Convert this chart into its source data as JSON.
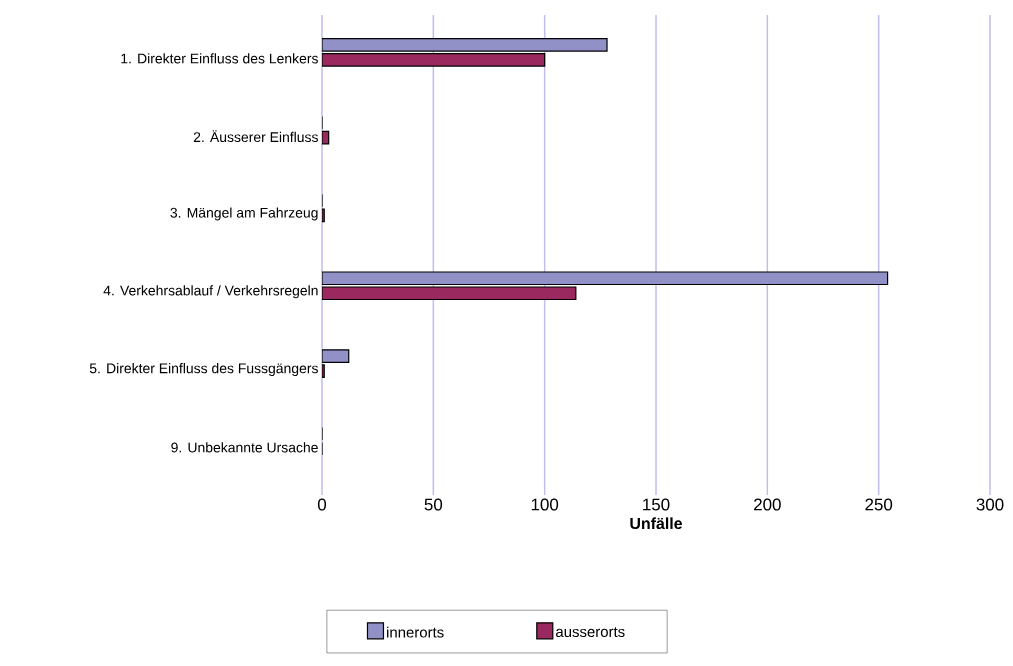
{
  "chart_data": {
    "type": "bar",
    "orientation": "horizontal",
    "xlabel": "Unfälle",
    "categories": [
      "1. Direkter Einfluss des Lenkers",
      "2. Äusserer Einfluss",
      "3. Mängel am Fahrzeug",
      "4. Verkehrsablauf / Verkehrsregeln",
      "5. Direkter Einfluss des Fussgängers",
      "9. Unbekannte Ursache"
    ],
    "series": [
      {
        "name": "innerorts",
        "color": "#9191c8",
        "values": [
          128,
          0,
          0,
          254,
          12,
          0
        ]
      },
      {
        "name": "ausserorts",
        "color": "#99295f",
        "values": [
          100,
          3,
          1,
          114,
          1,
          0
        ]
      }
    ],
    "xlim": [
      0,
      300
    ],
    "xticks": [
      0,
      50,
      100,
      150,
      200,
      250,
      300
    ],
    "grid": "x",
    "legend": "bottom"
  }
}
